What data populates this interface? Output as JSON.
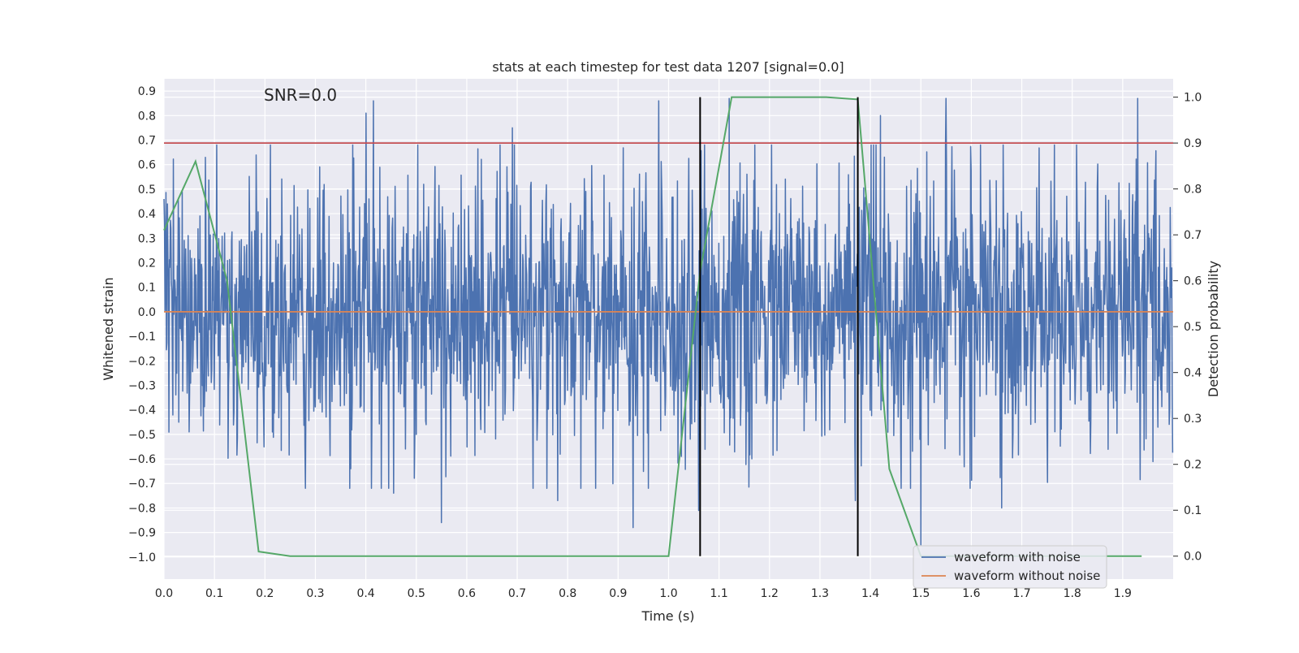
{
  "chart_data": {
    "type": "line",
    "title": "stats at each timestep for test data 1207 [signal=0.0]",
    "xlabel": "Time (s)",
    "ylabel": "Whitened strain",
    "ylabel_right": "Detection probability",
    "annotation": "SNR=0.0",
    "xlim": [
      0.0,
      2.0
    ],
    "ylim": [
      -1.09,
      0.95
    ],
    "ylim_right": [
      -0.05,
      1.04
    ],
    "x_ticks": [
      "0.0",
      "0.1",
      "0.2",
      "0.3",
      "0.4",
      "0.5",
      "0.6",
      "0.7",
      "0.8",
      "0.9",
      "1.0",
      "1.1",
      "1.2",
      "1.3",
      "1.4",
      "1.5",
      "1.6",
      "1.7",
      "1.8",
      "1.9"
    ],
    "y_ticks": [
      "0.9",
      "0.8",
      "0.7",
      "0.6",
      "0.5",
      "0.4",
      "0.3",
      "0.2",
      "0.1",
      "0.0",
      "−0.1",
      "−0.2",
      "−0.3",
      "−0.4",
      "−0.5",
      "−0.6",
      "−0.7",
      "−0.8",
      "−0.9",
      "−1.0"
    ],
    "y_right_ticks": [
      "1.0",
      "0.9",
      "0.8",
      "0.7",
      "0.6",
      "0.5",
      "0.4",
      "0.3",
      "0.2",
      "0.1",
      "0.0"
    ],
    "legend": {
      "position": "lower-right",
      "entries": [
        {
          "label": "waveform with noise",
          "color": "#4c72b0"
        },
        {
          "label": "waveform without noise",
          "color": "#dd8452"
        }
      ]
    },
    "series": [
      {
        "name": "waveform with noise",
        "axis": "left",
        "color": "#4c72b0",
        "generated": true,
        "n_points": 2048,
        "amplitude_sigma": 0.27,
        "spikes": [
          {
            "x": 0.4,
            "y": 0.81
          },
          {
            "x": 0.415,
            "y": 0.86
          },
          {
            "x": 0.37,
            "y": -0.64
          },
          {
            "x": 0.455,
            "y": -0.74
          },
          {
            "x": 0.55,
            "y": -0.86
          },
          {
            "x": 0.69,
            "y": 0.75
          },
          {
            "x": 0.78,
            "y": -0.77
          },
          {
            "x": 0.93,
            "y": -0.88
          },
          {
            "x": 0.98,
            "y": 0.86
          },
          {
            "x": 1.06,
            "y": -0.81
          },
          {
            "x": 1.12,
            "y": 0.87
          },
          {
            "x": 1.165,
            "y": -0.6
          },
          {
            "x": 1.37,
            "y": -0.77
          },
          {
            "x": 1.42,
            "y": 0.8
          },
          {
            "x": 1.5,
            "y": -0.95
          },
          {
            "x": 1.55,
            "y": 0.87
          },
          {
            "x": 1.66,
            "y": -0.8
          },
          {
            "x": 1.93,
            "y": 0.87
          }
        ]
      },
      {
        "name": "waveform without noise",
        "axis": "left",
        "color": "#dd8452",
        "x": [
          0.0,
          2.0
        ],
        "y": [
          0.0,
          0.0
        ]
      },
      {
        "name": "detection probability",
        "axis": "right",
        "color": "#55a868",
        "x": [
          0.0,
          0.0625,
          0.125,
          0.1875,
          0.25,
          0.3125,
          0.375,
          0.4375,
          0.5,
          0.5625,
          0.625,
          0.6875,
          0.75,
          0.8125,
          0.875,
          0.9375,
          1.0,
          1.0625,
          1.125,
          1.1875,
          1.25,
          1.3125,
          1.375,
          1.4375,
          1.5,
          1.5625,
          1.625,
          1.6875,
          1.75,
          1.8125,
          1.875,
          1.9375
        ],
        "y": [
          0.71,
          0.86,
          0.6,
          0.01,
          0.0,
          0.0,
          0.0,
          0.0,
          0.0,
          0.0,
          0.0,
          0.0,
          0.0,
          0.0,
          0.0,
          0.0,
          0.0,
          0.62,
          1.0,
          1.0,
          1.0,
          1.0,
          0.995,
          0.19,
          0.0,
          0.0,
          0.0,
          0.0,
          0.0,
          0.0,
          0.0,
          0.0
        ]
      }
    ],
    "threshold_line": {
      "axis": "right",
      "value": 0.9,
      "color": "#c44e52"
    },
    "vertical_lines": [
      {
        "x": 1.0625,
        "color": "#000000"
      },
      {
        "x": 1.375,
        "color": "#000000"
      }
    ],
    "vertical_lines_range_right": [
      0.0,
      1.0
    ]
  }
}
